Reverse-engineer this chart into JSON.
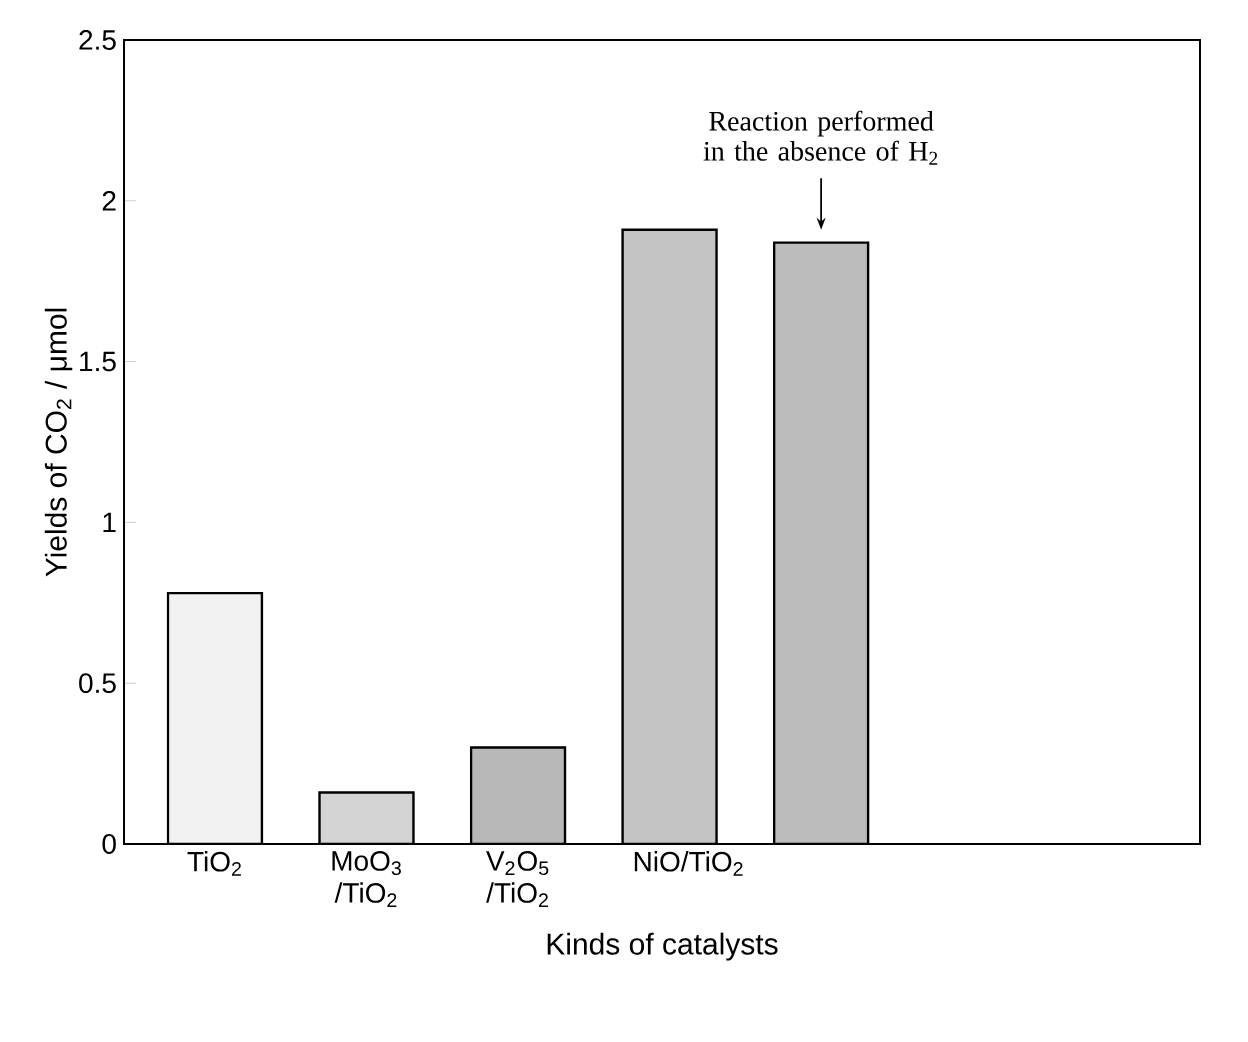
{
  "chart_data": {
    "type": "bar",
    "xlabel": "Kinds of catalysts",
    "ylabel": "Yields of CO$_{2}$ / μmol",
    "categories": [
      "TiO$_{2}$",
      "MoO$_{3}$ /TiO$_{2}$",
      "V$_{2}$O$_{5}$ /TiO$_{2}$",
      "NiO/TiO$_{2}$",
      null
    ],
    "values": [
      0.78,
      0.16,
      0.3,
      1.91,
      1.87
    ],
    "colors": [
      "#f2f2f2",
      "#d4d4d4",
      "#b8b8b8",
      "#c4c4c4",
      "#bcbcbc"
    ],
    "ylim": [
      0,
      2.5
    ],
    "yticks": [
      0,
      0.5,
      1,
      1.5,
      2,
      2.5
    ],
    "annotations": [
      "Reaction performed in the absence of H$_{2}$"
    ],
    "grid": false
  }
}
